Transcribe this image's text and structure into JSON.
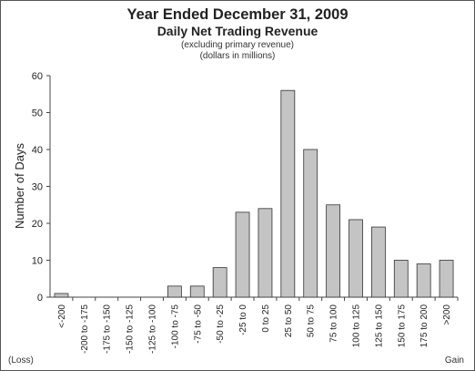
{
  "chart_data": {
    "type": "bar",
    "title": "Year Ended December 31, 2009",
    "subtitle": "Daily Net Trading Revenue",
    "notes": [
      "(excluding primary revenue)",
      "(dollars in millions)"
    ],
    "xlabel": "",
    "ylabel": "Number of Days",
    "ylim": [
      0,
      60
    ],
    "yticks": [
      0,
      10,
      20,
      30,
      40,
      50,
      60
    ],
    "grid": false,
    "categories": [
      "<-200",
      "-200 to -175",
      "-175 to -150",
      "-150 to -125",
      "-125 to -100",
      "-100 to -75",
      "-75 to -50",
      "-50 to -25",
      "-25 to 0",
      "0 to 25",
      "25 to 50",
      "50 to 75",
      "75 to 100",
      "100 to 125",
      "125 to 150",
      "150 to 175",
      "175 to 200",
      ">200"
    ],
    "values": [
      1,
      0,
      0,
      0,
      0,
      3,
      3,
      8,
      23,
      24,
      56,
      40,
      25,
      21,
      19,
      10,
      9,
      10
    ],
    "left_corner_label": "(Loss)",
    "right_corner_label": "Gain",
    "bar_color": "#c4c4c4",
    "bar_stroke": "#333333"
  }
}
